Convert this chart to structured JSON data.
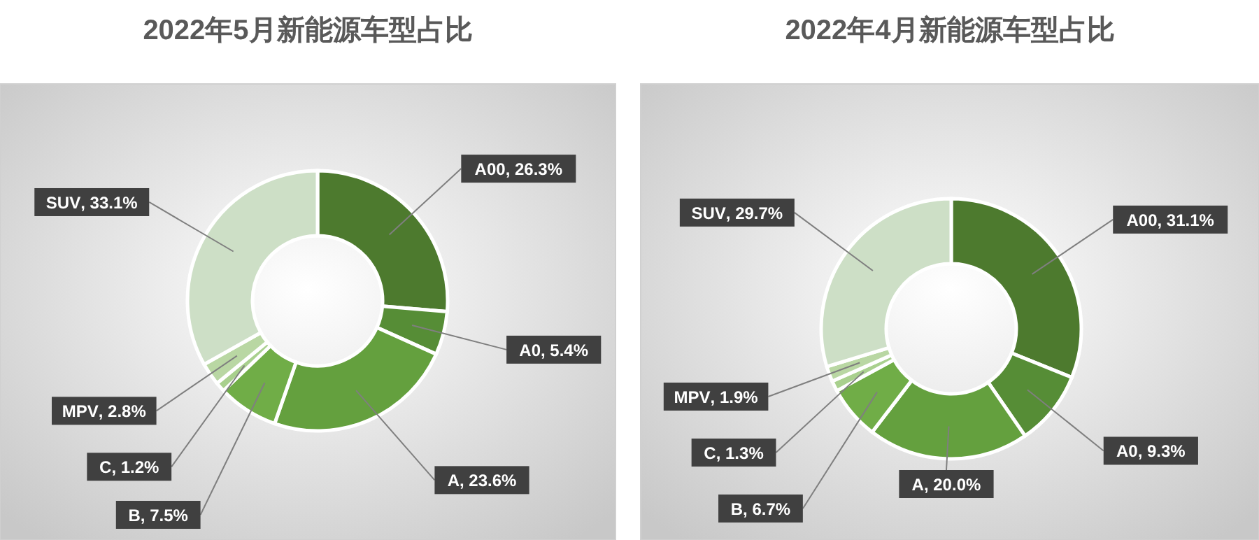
{
  "chart_data": [
    {
      "type": "donut",
      "title": "2022年5月新能源车型占比",
      "categories": [
        "A00",
        "A0",
        "A",
        "B",
        "C",
        "MPV",
        "SUV"
      ],
      "values": [
        26.3,
        5.4,
        23.6,
        7.5,
        1.2,
        2.8,
        33.1
      ],
      "colors": [
        "#4d7a2e",
        "#568d36",
        "#64a03e",
        "#70ad47",
        "#a9d08e",
        "#b9d7a3",
        "#cddfc6"
      ],
      "value_labels": [
        ", 26.3%",
        ", 5.4%",
        ", 23.6%",
        ", 7.5%",
        ", 1.2%",
        ", 2.8%",
        ", 33.1%"
      ]
    },
    {
      "type": "donut",
      "title": "2022年4月新能源车型占比",
      "categories": [
        "A00",
        "A0",
        "A",
        "B",
        "C",
        "MPV",
        "SUV"
      ],
      "values": [
        31.1,
        9.3,
        20.0,
        6.7,
        1.3,
        1.9,
        29.7
      ],
      "colors": [
        "#4d7a2e",
        "#568d36",
        "#64a03e",
        "#70ad47",
        "#a9d08e",
        "#b9d7a3",
        "#cddfc6"
      ],
      "value_labels": [
        ", 31.1%",
        ", 9.3%",
        ", 20.0%",
        ", 6.7%",
        ", 1.3%",
        ", 1.9%",
        ", 29.7%"
      ]
    }
  ]
}
